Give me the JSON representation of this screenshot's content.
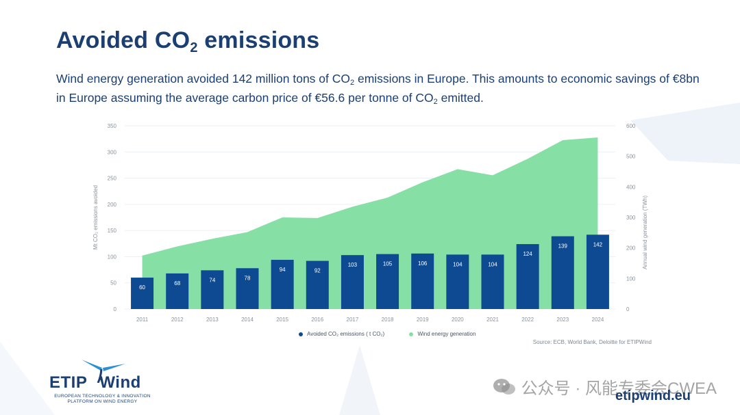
{
  "slide": {
    "title": "Avoided CO",
    "title_sub": "2",
    "title_tail": " emissions",
    "subtitle_a": "Wind energy generation avoided 142 million tons of CO",
    "subtitle_sub1": "2",
    "subtitle_b": " emissions in Europe. This amounts to economic savings of €8bn in Europe assuming the average carbon price of €56.6 per tonne of CO",
    "subtitle_sub2": "2",
    "subtitle_c": " emitted."
  },
  "legend": {
    "bars": "Avoided CO₂ emissions ( t CO₂)",
    "area": "Wind energy generation"
  },
  "source": "Source: ECB, World Bank, Deloitte for ETIPWind",
  "logo": {
    "name_a": "ETIP",
    "name_b": "Wind",
    "line1": "EUROPEAN TECHNOLOGY & INNOVATION",
    "line2": "PLATFORM ON WIND ENERGY"
  },
  "url": "etipwind.eu",
  "watermark": "公众号 · 风能专委会CWEA",
  "colors": {
    "navy": "#0d4a92",
    "green": "#86e0a6",
    "title": "#1b3f73"
  },
  "chart_data": {
    "type": "bar",
    "categories": [
      "2011",
      "2012",
      "2013",
      "2014",
      "2015",
      "2016",
      "2017",
      "2018",
      "2019",
      "2020",
      "2021",
      "2022",
      "2023",
      "2024"
    ],
    "series": [
      {
        "name": "Avoided CO₂ emissions ( t CO₂)",
        "type": "bar",
        "axis": "left",
        "values": [
          60,
          68,
          74,
          78,
          94,
          92,
          103,
          105,
          106,
          104,
          104,
          124,
          139,
          142
        ]
      },
      {
        "name": "Wind energy generation",
        "type": "area",
        "axis": "right",
        "values": [
          175,
          205,
          230,
          252,
          300,
          298,
          335,
          365,
          415,
          458,
          438,
          492,
          553,
          562
        ]
      }
    ],
    "ylabel": "Mt CO₂ emissions avoided",
    "y2label": "Annual wind generation (TWh)",
    "ylim": [
      0,
      350
    ],
    "y2lim": [
      0,
      600
    ],
    "yticks": [
      0,
      50,
      100,
      150,
      200,
      250,
      300,
      350
    ],
    "y2ticks": [
      0,
      100,
      200,
      300,
      400,
      500,
      600
    ]
  }
}
